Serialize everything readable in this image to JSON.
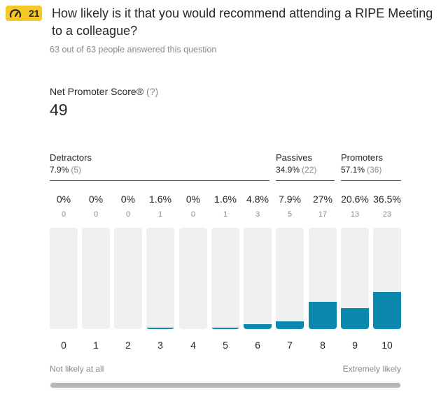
{
  "badge": {
    "number": "21",
    "icon": "gauge-icon",
    "color": "#f5c828"
  },
  "question": "How likely is it that you would recommend attending a RIPE Meeting to a colleague?",
  "answered_text": "63 out of 63 people answered this question",
  "nps": {
    "label": "Net Promoter Score®",
    "help": "(?)",
    "value": "49"
  },
  "groups": [
    {
      "name": "Detractors",
      "percent": "7.9%",
      "count": "(5)"
    },
    {
      "name": "Passives",
      "percent": "34.9%",
      "count": "(22)"
    },
    {
      "name": "Promoters",
      "percent": "57.1%",
      "count": "(36)"
    }
  ],
  "bar_color": "#0b88ad",
  "columns": [
    {
      "score": "0",
      "percent": "0%",
      "count": "0",
      "value": 0
    },
    {
      "score": "1",
      "percent": "0%",
      "count": "0",
      "value": 0
    },
    {
      "score": "2",
      "percent": "0%",
      "count": "0",
      "value": 0
    },
    {
      "score": "3",
      "percent": "1.6%",
      "count": "1",
      "value": 1.6
    },
    {
      "score": "4",
      "percent": "0%",
      "count": "0",
      "value": 0
    },
    {
      "score": "5",
      "percent": "1.6%",
      "count": "1",
      "value": 1.6
    },
    {
      "score": "6",
      "percent": "4.8%",
      "count": "3",
      "value": 4.8
    },
    {
      "score": "7",
      "percent": "7.9%",
      "count": "5",
      "value": 7.9
    },
    {
      "score": "8",
      "percent": "27%",
      "count": "17",
      "value": 27
    },
    {
      "score": "9",
      "percent": "20.6%",
      "count": "13",
      "value": 20.6
    },
    {
      "score": "10",
      "percent": "36.5%",
      "count": "23",
      "value": 36.5
    }
  ],
  "scale": {
    "low": "Not likely at all",
    "high": "Extremely likely"
  }
}
